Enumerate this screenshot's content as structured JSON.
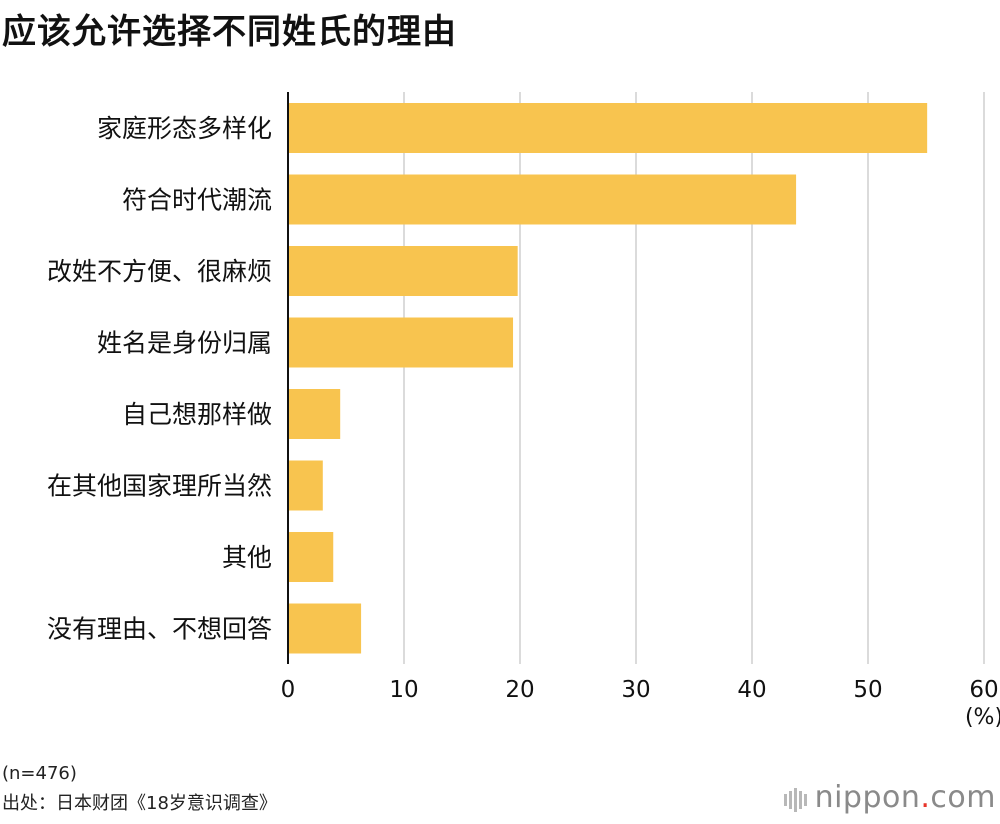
{
  "chart_data": {
    "type": "bar",
    "orientation": "horizontal",
    "title": "应该允许选择不同姓氏的理由",
    "categories": [
      "家庭形态多样化",
      "符合时代潮流",
      "改姓不方便、很麻烦",
      "姓名是身份归属",
      "自己想那样做",
      "在其他国家理所当然",
      "其他",
      "没有理由、不想回答"
    ],
    "values": [
      55.1,
      43.8,
      19.8,
      19.4,
      4.5,
      3.0,
      3.9,
      6.3
    ],
    "xlim": [
      0,
      60
    ],
    "xticks": [
      "0",
      "10",
      "20",
      "30",
      "40",
      "50",
      "60"
    ],
    "unit": "(%)",
    "grid": true,
    "bar_color": "#f8c44f"
  },
  "notes": {
    "sample": "(n=476)",
    "source": "出处：日本财团《18岁意识调查》"
  },
  "brand": {
    "name": "nippon",
    "dot": ".",
    "tld": "com"
  }
}
